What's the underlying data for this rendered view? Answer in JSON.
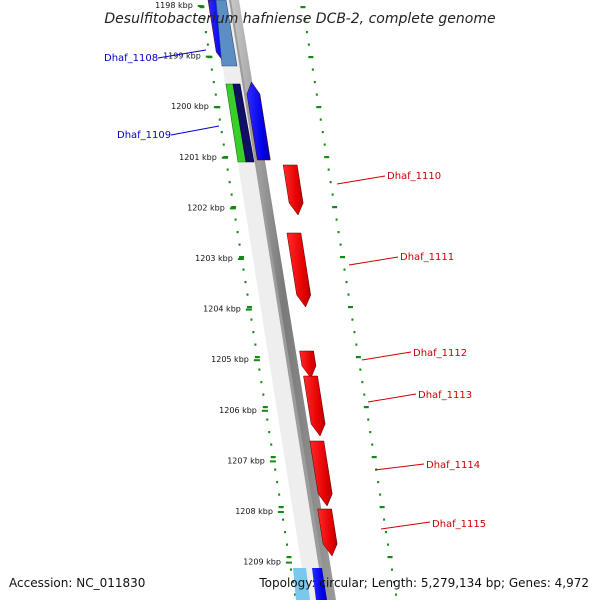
{
  "title": "Desulfitobacterium hafniense DCB-2, complete genome",
  "footer": {
    "accession": "Accession: NC_011830",
    "topology": "Topology: circular; Length: 5,279,134 bp; Genes: 4,972"
  },
  "colors": {
    "background": "#ffffff",
    "forward_gene": "#ff0000",
    "reverse_gene": "#0000ff",
    "left_label": "#0000cc",
    "right_label": "#cc0000",
    "ruler_tick": "#138a13",
    "backbone": "#8c8c8c"
  },
  "ruler": {
    "ticks_kbp": [
      "1198 kbp",
      "1199 kbp",
      "1200 kbp",
      "1201 kbp",
      "1202 kbp",
      "1203 kbp",
      "1204 kbp",
      "1205 kbp",
      "1206 kbp",
      "1207 kbp",
      "1208 kbp",
      "1209 kbp"
    ]
  },
  "genes": [
    {
      "name": "Dhaf_1108",
      "strand": "reverse",
      "side": "left"
    },
    {
      "name": "Dhaf_1109",
      "strand": "reverse",
      "side": "left"
    },
    {
      "name": "Dhaf_1110",
      "strand": "forward",
      "side": "right"
    },
    {
      "name": "Dhaf_1111",
      "strand": "forward",
      "side": "right"
    },
    {
      "name": "Dhaf_1112",
      "strand": "forward",
      "side": "right"
    },
    {
      "name": "Dhaf_1113",
      "strand": "forward",
      "side": "right"
    },
    {
      "name": "Dhaf_1114",
      "strand": "forward",
      "side": "right"
    },
    {
      "name": "Dhaf_1115",
      "strand": "forward",
      "side": "right"
    }
  ]
}
